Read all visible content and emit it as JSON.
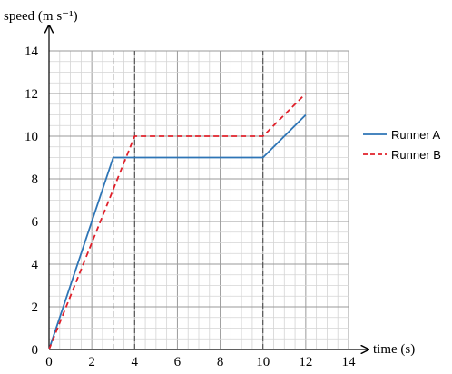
{
  "chart_data": {
    "type": "line",
    "ylabel": "speed (m s⁻¹)",
    "xlabel": "time (s)",
    "xlim": [
      0,
      14
    ],
    "ylim": [
      0,
      14
    ],
    "x_ticks": [
      "0",
      "2",
      "4",
      "6",
      "8",
      "10",
      "12",
      "14"
    ],
    "y_ticks": [
      "0",
      "2",
      "4",
      "6",
      "8",
      "10",
      "12",
      "14"
    ],
    "grid": true,
    "legend_position": "right",
    "series": [
      {
        "name": "Runner A",
        "color": "#2e75b6",
        "style": "solid",
        "points": [
          [
            0,
            0
          ],
          [
            3,
            9
          ],
          [
            10,
            9
          ],
          [
            12,
            11
          ]
        ]
      },
      {
        "name": "Runner B",
        "color": "#e0202a",
        "style": "dashed",
        "points": [
          [
            0,
            0
          ],
          [
            4,
            10
          ],
          [
            10,
            10
          ],
          [
            12,
            12
          ]
        ]
      }
    ],
    "reference_lines_x": [
      3,
      4,
      10
    ]
  }
}
